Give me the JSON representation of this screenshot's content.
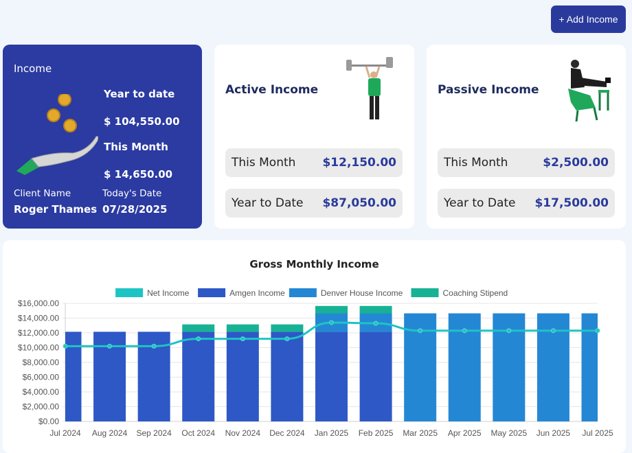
{
  "header": {
    "add_income_label": "+ Add Income"
  },
  "income_card": {
    "title": "Income",
    "year_to_date_label": "Year to date",
    "year_to_date_value": "$ 104,550.00",
    "this_month_label": "This Month",
    "this_month_value": "$ 14,650.00",
    "client_name_label": "Client Name",
    "client_name": "Roger Thames",
    "todays_date_label": "Today's Date",
    "todays_date": "07/28/2025"
  },
  "active_card": {
    "title": "Active Income",
    "this_month_label": "This Month",
    "this_month_value": "$12,150.00",
    "ytd_label": "Year to Date",
    "ytd_value": "$87,050.00"
  },
  "passive_card": {
    "title": "Passive Income",
    "this_month_label": "This Month",
    "this_month_value": "$2,500.00",
    "ytd_label": "Year to Date",
    "ytd_value": "$17,500.00"
  },
  "chart_data": {
    "type": "bar",
    "title": "Gross Monthly Income",
    "categories": [
      "Jul 2024",
      "Aug 2024",
      "Sep 2024",
      "Oct 2024",
      "Nov 2024",
      "Dec 2024",
      "Jan 2025",
      "Feb 2025",
      "Mar 2025",
      "Apr 2025",
      "May 2025",
      "Jun 2025",
      "Jul 2025"
    ],
    "ylim": [
      0,
      16000
    ],
    "yticks": [
      "$0.00",
      "$2,000.00",
      "$4,000.00",
      "$6,000.00",
      "$8,000.00",
      "$10,000.00",
      "$12,000.00",
      "$14,000.00",
      "$16,000.00"
    ],
    "legend_position": "top",
    "series": [
      {
        "name": "Net Income",
        "kind": "line",
        "color": "#1ec4c4",
        "values": [
          10200,
          10200,
          10200,
          11200,
          11200,
          11200,
          13400,
          13300,
          12300,
          12300,
          12300,
          12300,
          12300
        ]
      },
      {
        "name": "Amgen Income",
        "kind": "bar",
        "color": "#2d58c6",
        "values": [
          12150,
          12150,
          12150,
          12150,
          12150,
          12150,
          12150,
          12150,
          0,
          0,
          0,
          0,
          0
        ]
      },
      {
        "name": "Denver House Income",
        "kind": "bar",
        "color": "#2487d4",
        "values": [
          0,
          0,
          0,
          0,
          0,
          0,
          2500,
          2500,
          14650,
          14650,
          14650,
          14650,
          14650
        ]
      },
      {
        "name": "Coaching Stipend",
        "kind": "bar",
        "color": "#17b294",
        "values": [
          0,
          0,
          0,
          1000,
          1000,
          1000,
          1000,
          1000,
          0,
          0,
          0,
          0,
          0
        ]
      }
    ]
  }
}
